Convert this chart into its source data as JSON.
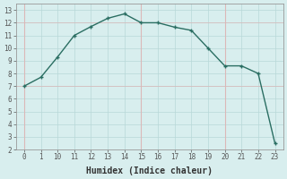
{
  "x_labels": [
    "0",
    "1",
    "10",
    "11",
    "12",
    "13",
    "14",
    "15",
    "16",
    "17",
    "18",
    "19",
    "20",
    "21",
    "22",
    "23"
  ],
  "y": [
    7.0,
    7.7,
    9.3,
    11.0,
    11.7,
    12.35,
    12.7,
    12.0,
    12.0,
    11.65,
    11.4,
    10.0,
    8.6,
    8.6,
    8.0,
    2.5
  ],
  "xlabel": "Humidex (Indice chaleur)",
  "ylim": [
    2,
    13.5
  ],
  "yticks": [
    2,
    3,
    4,
    5,
    6,
    7,
    8,
    9,
    10,
    11,
    12,
    13
  ],
  "line_color": "#2a6e62",
  "bg_color": "#d8eeee",
  "grid_color": "#b8d8d8",
  "grid_pink_color": "#dbb8b8",
  "tick_fontsize": 5.5,
  "xlabel_fontsize": 7.0
}
